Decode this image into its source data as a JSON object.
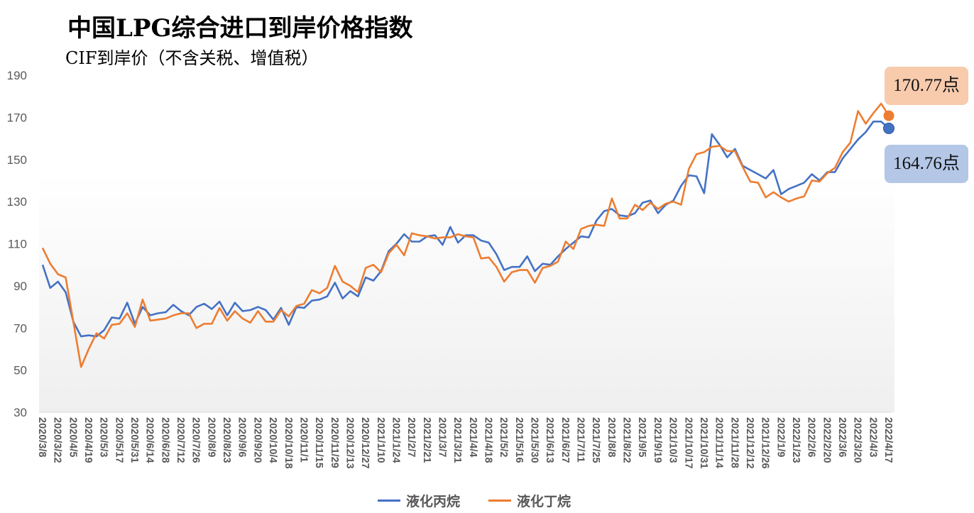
{
  "title": "中国LPG综合进口到岸价格指数",
  "subtitle": "CIF到岸价（不含关税、增值税）",
  "colors": {
    "propane": "#4472C4",
    "butane": "#ED7D31",
    "propane_label_bg": "#B4C7E7",
    "butane_label_bg": "#F8CBAD"
  },
  "end_labels": {
    "butane": "170.77点",
    "propane": "164.76点"
  },
  "chart_data": {
    "type": "line",
    "title": "中国LPG综合进口到岸价格指数",
    "ylim": [
      30,
      190
    ],
    "yticks": [
      30,
      50,
      70,
      90,
      110,
      130,
      150,
      170,
      190
    ],
    "x_start": "2020/3/8",
    "x_end": "2022/4/17",
    "x_interval": "weekly",
    "xtick_labels": [
      "2020/3/8",
      "2020/3/22",
      "2020/4/5",
      "2020/4/19",
      "2020/5/3",
      "2020/5/17",
      "2020/5/31",
      "2020/6/14",
      "2020/6/28",
      "2020/7/12",
      "2020/7/26",
      "2020/8/9",
      "2020/8/23",
      "2020/9/6",
      "2020/9/20",
      "2020/10/4",
      "2020/10/18",
      "2020/11/1",
      "2020/11/15",
      "2020/11/29",
      "2020/12/13",
      "2020/12/27",
      "2021/1/10",
      "2021/1/24",
      "2021/2/7",
      "2021/2/21",
      "2021/3/7",
      "2021/3/21",
      "2021/4/4",
      "2021/4/18",
      "2021/5/2",
      "2021/5/16",
      "2021/5/30",
      "2021/6/13",
      "2021/6/27",
      "2021/7/11",
      "2021/7/25",
      "2021/8/8",
      "2021/8/22",
      "2021/9/5",
      "2021/9/19",
      "2021/10/3",
      "2021/10/17",
      "2021/10/31",
      "2021/11/14",
      "2021/11/28",
      "2021/12/12",
      "2021/12/26",
      "2022/1/9",
      "2022/1/23",
      "2022/2/6",
      "2022/2/20",
      "2022/3/6",
      "2022/3/20",
      "2022/4/3",
      "2022/4/17"
    ],
    "legend_position": "bottom",
    "series": [
      {
        "name": "液化丙烷",
        "values": [
          100,
          89,
          92,
          87,
          73,
          66,
          66.5,
          66,
          69,
          75,
          74.5,
          82,
          72,
          80,
          76,
          77,
          77.5,
          81,
          78,
          76,
          80,
          81.5,
          79,
          82.5,
          76,
          82,
          78,
          78.5,
          80,
          78.5,
          74,
          79.5,
          71.5,
          80,
          79.5,
          83,
          83.5,
          85,
          91.5,
          84,
          87.5,
          85,
          94,
          92.5,
          97,
          106.5,
          110,
          114.5,
          111,
          111,
          113.5,
          114,
          109.5,
          118,
          110.5,
          114,
          114,
          111.5,
          110.5,
          105,
          97.5,
          99,
          99,
          104,
          97,
          100.5,
          100,
          104,
          107.5,
          110.5,
          113.5,
          113,
          121,
          125.5,
          126.5,
          123.5,
          123,
          124.5,
          129.5,
          130.5,
          124.5,
          128.5,
          130.5,
          137.5,
          142.5,
          142,
          134,
          162,
          157,
          151,
          155,
          147,
          145,
          143,
          141,
          145,
          133.5,
          136,
          137.5,
          139,
          143,
          140,
          144,
          144,
          150.5,
          155,
          159.5,
          163,
          168,
          168,
          164.76
        ]
      },
      {
        "name": "液化丁烷",
        "values": [
          108,
          100.5,
          95.5,
          94,
          73,
          51.5,
          60,
          67.5,
          65,
          71.5,
          72,
          77,
          70.5,
          83.5,
          73.5,
          74,
          74.5,
          76,
          77,
          77,
          70,
          72,
          72,
          79.5,
          73.5,
          78,
          74.5,
          72.5,
          78,
          73,
          73,
          78.5,
          75.5,
          80.5,
          81.5,
          88,
          86.5,
          89,
          99.5,
          92,
          90,
          87,
          98.5,
          100,
          96.5,
          105.5,
          109.5,
          104.5,
          115,
          114,
          113.5,
          112.5,
          113,
          113,
          114.5,
          113.5,
          113,
          103,
          103.5,
          99,
          92,
          96.5,
          97.5,
          97.5,
          91.5,
          98.5,
          99.5,
          101.5,
          111,
          107.5,
          117,
          118.5,
          119,
          118.5,
          131.5,
          122,
          122,
          128.5,
          126,
          129.5,
          126.5,
          129,
          130,
          128.5,
          145.5,
          152.5,
          153.5,
          156,
          156.5,
          154,
          154,
          146.5,
          139.5,
          139,
          132,
          134.5,
          132,
          130,
          131.5,
          132.5,
          140,
          139.5,
          143.5,
          146,
          153.5,
          158,
          173,
          167,
          172,
          176.5,
          170.77
        ]
      }
    ]
  }
}
